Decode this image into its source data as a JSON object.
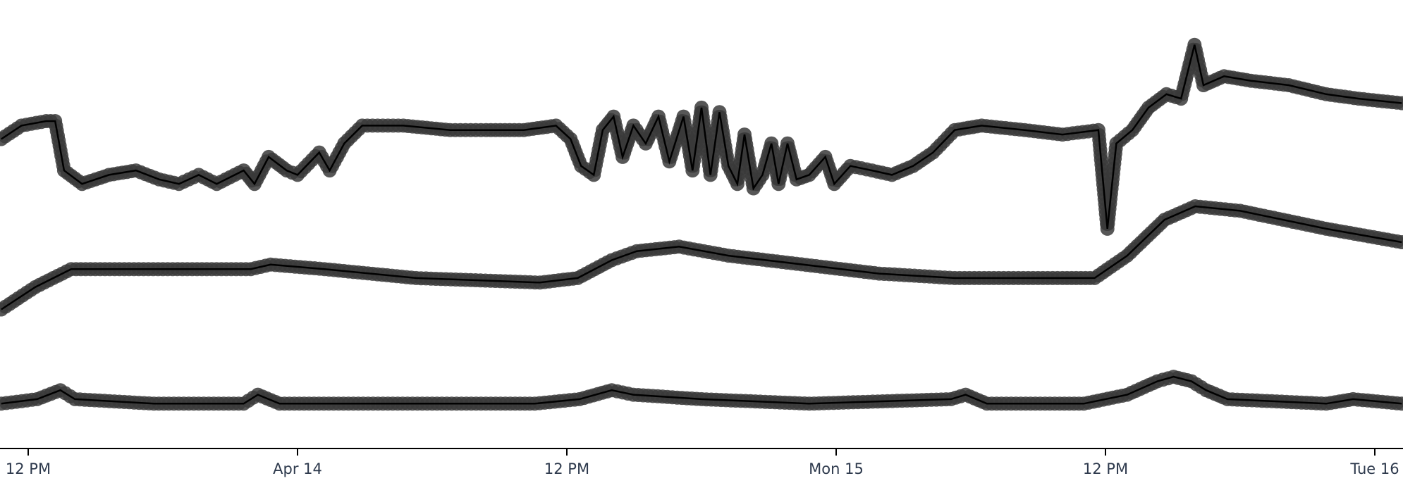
{
  "chart_data": {
    "type": "line",
    "title": "",
    "xlabel": "",
    "ylabel": "",
    "grid": false,
    "legend": "none",
    "x_range": [
      "2019-04-13T12:00",
      "2019-04-16T00:00"
    ],
    "y_range": [
      0,
      100
    ],
    "x_ticks": [
      {
        "t": "2019-04-13T12:00",
        "label": "12 PM"
      },
      {
        "t": "2019-04-14T00:00",
        "label": "Apr 14"
      },
      {
        "t": "2019-04-14T12:00",
        "label": "12 PM"
      },
      {
        "t": "2019-04-15T00:00",
        "label": "Mon 15"
      },
      {
        "t": "2019-04-15T12:00",
        "label": "12 PM"
      },
      {
        "t": "2019-04-16T00:00",
        "label": "Tue 16"
      }
    ],
    "colors": {
      "marker": "#3a3a3a",
      "line": "#000000",
      "axis": "#000000",
      "tick_label": "#2e3a4d"
    },
    "series": [
      {
        "points": [
          [
            "2019-04-13T10:48",
            69
          ],
          [
            "2019-04-13T11:42",
            72
          ],
          [
            "2019-04-13T12:48",
            73
          ],
          [
            "2019-04-13T13:12",
            73
          ],
          [
            "2019-04-13T13:36",
            62
          ],
          [
            "2019-04-13T14:24",
            59
          ],
          [
            "2019-04-13T15:36",
            61
          ],
          [
            "2019-04-13T16:48",
            62
          ],
          [
            "2019-04-13T17:50",
            60
          ],
          [
            "2019-04-13T18:43",
            59
          ],
          [
            "2019-04-13T19:36",
            61
          ],
          [
            "2019-04-13T20:24",
            59
          ],
          [
            "2019-04-13T21:36",
            62
          ],
          [
            "2019-04-13T22:05",
            59
          ],
          [
            "2019-04-13T22:43",
            65
          ],
          [
            "2019-04-13T23:31",
            62
          ],
          [
            "2019-04-14T00:00",
            61
          ],
          [
            "2019-04-14T00:58",
            66
          ],
          [
            "2019-04-14T01:26",
            62
          ],
          [
            "2019-04-14T02:05",
            68
          ],
          [
            "2019-04-14T02:53",
            72
          ],
          [
            "2019-04-14T04:43",
            72
          ],
          [
            "2019-04-14T06:48",
            71
          ],
          [
            "2019-04-14T08:24",
            71
          ],
          [
            "2019-04-14T10:05",
            71
          ],
          [
            "2019-04-14T11:31",
            72
          ],
          [
            "2019-04-14T12:10",
            69
          ],
          [
            "2019-04-14T12:38",
            63
          ],
          [
            "2019-04-14T13:12",
            61
          ],
          [
            "2019-04-14T13:36",
            71
          ],
          [
            "2019-04-14T14:05",
            74
          ],
          [
            "2019-04-14T14:29",
            65
          ],
          [
            "2019-04-14T14:58",
            72
          ],
          [
            "2019-04-14T15:31",
            68
          ],
          [
            "2019-04-14T16:05",
            74
          ],
          [
            "2019-04-14T16:34",
            64
          ],
          [
            "2019-04-14T17:12",
            74
          ],
          [
            "2019-04-14T17:36",
            62
          ],
          [
            "2019-04-14T18:00",
            76
          ],
          [
            "2019-04-14T18:24",
            61
          ],
          [
            "2019-04-14T18:48",
            75
          ],
          [
            "2019-04-14T19:12",
            63
          ],
          [
            "2019-04-14T19:36",
            59
          ],
          [
            "2019-04-14T19:55",
            70
          ],
          [
            "2019-04-14T20:19",
            58
          ],
          [
            "2019-04-14T20:43",
            61
          ],
          [
            "2019-04-14T21:07",
            68
          ],
          [
            "2019-04-14T21:26",
            59
          ],
          [
            "2019-04-14T21:50",
            68
          ],
          [
            "2019-04-14T22:14",
            60
          ],
          [
            "2019-04-14T22:48",
            61
          ],
          [
            "2019-04-14T23:31",
            65
          ],
          [
            "2019-04-14T23:55",
            59
          ],
          [
            "2019-04-15T00:38",
            63
          ],
          [
            "2019-04-15T01:36",
            62
          ],
          [
            "2019-04-15T02:29",
            61
          ],
          [
            "2019-04-15T03:26",
            63
          ],
          [
            "2019-04-15T04:19",
            66
          ],
          [
            "2019-04-15T05:17",
            71
          ],
          [
            "2019-04-15T06:29",
            72
          ],
          [
            "2019-04-15T08:24",
            71
          ],
          [
            "2019-04-15T10:05",
            70
          ],
          [
            "2019-04-15T11:41",
            71
          ],
          [
            "2019-04-15T12:05",
            49
          ],
          [
            "2019-04-15T12:29",
            68
          ],
          [
            "2019-04-15T13:12",
            71
          ],
          [
            "2019-04-15T13:55",
            76
          ],
          [
            "2019-04-15T14:43",
            79
          ],
          [
            "2019-04-15T15:22",
            78
          ],
          [
            "2019-04-15T15:58",
            90
          ],
          [
            "2019-04-15T16:22",
            81
          ],
          [
            "2019-04-15T17:17",
            83
          ],
          [
            "2019-04-15T18:29",
            82
          ],
          [
            "2019-04-15T20:10",
            81
          ],
          [
            "2019-04-15T21:50",
            79
          ],
          [
            "2019-04-15T23:17",
            78
          ],
          [
            "2019-04-16T01:12",
            77
          ]
        ]
      },
      {
        "points": [
          [
            "2019-04-13T10:48",
            31
          ],
          [
            "2019-04-13T12:19",
            36
          ],
          [
            "2019-04-13T13:55",
            40
          ],
          [
            "2019-04-13T18:00",
            40
          ],
          [
            "2019-04-13T21:55",
            40
          ],
          [
            "2019-04-13T22:48",
            41
          ],
          [
            "2019-04-14T01:12",
            40
          ],
          [
            "2019-04-14T05:17",
            38
          ],
          [
            "2019-04-14T10:48",
            37
          ],
          [
            "2019-04-14T12:29",
            38
          ],
          [
            "2019-04-14T14:00",
            42
          ],
          [
            "2019-04-14T15:07",
            44
          ],
          [
            "2019-04-14T17:00",
            45
          ],
          [
            "2019-04-14T19:12",
            43
          ],
          [
            "2019-04-15T01:55",
            39
          ],
          [
            "2019-04-15T05:17",
            38
          ],
          [
            "2019-04-15T10:05",
            38
          ],
          [
            "2019-04-15T11:31",
            38
          ],
          [
            "2019-04-15T12:58",
            43
          ],
          [
            "2019-04-15T14:38",
            51
          ],
          [
            "2019-04-15T16:00",
            54
          ],
          [
            "2019-04-15T18:00",
            53
          ],
          [
            "2019-04-15T21:50",
            49
          ],
          [
            "2019-04-16T01:12",
            46
          ]
        ]
      },
      {
        "points": [
          [
            "2019-04-13T10:48",
            10
          ],
          [
            "2019-04-13T12:24",
            11
          ],
          [
            "2019-04-13T13:26",
            13
          ],
          [
            "2019-04-13T14:05",
            11
          ],
          [
            "2019-04-13T17:36",
            10
          ],
          [
            "2019-04-13T21:36",
            10
          ],
          [
            "2019-04-13T22:14",
            12
          ],
          [
            "2019-04-13T23:12",
            10
          ],
          [
            "2019-04-14T06:00",
            10
          ],
          [
            "2019-04-14T10:34",
            10
          ],
          [
            "2019-04-14T12:34",
            11
          ],
          [
            "2019-04-14T14:00",
            13
          ],
          [
            "2019-04-14T14:58",
            12
          ],
          [
            "2019-04-14T18:00",
            11
          ],
          [
            "2019-04-14T22:48",
            10
          ],
          [
            "2019-04-15T05:07",
            11
          ],
          [
            "2019-04-15T05:46",
            12
          ],
          [
            "2019-04-15T06:43",
            10
          ],
          [
            "2019-04-15T11:02",
            10
          ],
          [
            "2019-04-15T12:58",
            12
          ],
          [
            "2019-04-15T14:19",
            15
          ],
          [
            "2019-04-15T15:02",
            16
          ],
          [
            "2019-04-15T15:50",
            15
          ],
          [
            "2019-04-15T16:29",
            13
          ],
          [
            "2019-04-15T17:26",
            11
          ],
          [
            "2019-04-15T21:50",
            10
          ],
          [
            "2019-04-15T23:02",
            11
          ],
          [
            "2019-04-16T01:12",
            10
          ]
        ]
      }
    ]
  }
}
